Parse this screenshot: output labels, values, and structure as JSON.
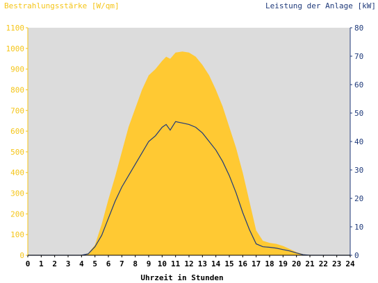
{
  "chart_data": {
    "type": "area",
    "title": "",
    "left_axis_label": "Bestrahlungsstärke [W/qm]",
    "right_axis_label": "Leistung der Anlage [kW]",
    "xlabel": "Uhrzeit in Stunden",
    "xlim": [
      0,
      24
    ],
    "ylim_left": [
      0,
      1100
    ],
    "ylim_right": [
      0,
      80
    ],
    "x_ticks": [
      0,
      1,
      2,
      3,
      4,
      5,
      6,
      7,
      8,
      9,
      10,
      11,
      12,
      13,
      14,
      15,
      16,
      17,
      18,
      19,
      20,
      21,
      22,
      23,
      24
    ],
    "y_ticks_left": [
      0,
      100,
      200,
      300,
      400,
      500,
      600,
      700,
      800,
      900,
      1000,
      1100
    ],
    "y_ticks_right": [
      0,
      10,
      20,
      30,
      40,
      50,
      60,
      70,
      80
    ],
    "colors": {
      "plot_background": "#dcdcdc",
      "irradiance_fill": "#ffc933",
      "power_line": "#1f3a7a",
      "left_axis": "#f5c518",
      "right_axis": "#1f3a7a"
    },
    "series": [
      {
        "name": "Bestrahlungsstärke [W/qm]",
        "axis": "left",
        "kind": "area",
        "x": [
          0,
          4,
          4.5,
          5,
          5.5,
          6,
          6.5,
          7,
          7.5,
          8,
          8.5,
          9,
          9.5,
          10,
          10.3,
          10.6,
          11,
          11.5,
          12,
          12.5,
          13,
          13.5,
          14,
          14.5,
          15,
          15.5,
          16,
          16.5,
          17,
          17.5,
          18,
          18.5,
          19,
          19.5,
          20,
          20.5,
          21,
          24
        ],
        "y": [
          0,
          0,
          10,
          50,
          150,
          270,
          380,
          500,
          620,
          710,
          800,
          870,
          900,
          940,
          960,
          950,
          980,
          985,
          980,
          960,
          920,
          870,
          800,
          720,
          620,
          520,
          400,
          260,
          120,
          70,
          60,
          55,
          45,
          30,
          15,
          5,
          0,
          0
        ]
      },
      {
        "name": "Leistung der Anlage [kW]",
        "axis": "right",
        "kind": "line",
        "x": [
          0,
          4,
          4.5,
          5,
          5.5,
          6,
          6.5,
          7,
          7.5,
          8,
          8.5,
          9,
          9.5,
          10,
          10.3,
          10.6,
          11,
          11.5,
          12,
          12.5,
          13,
          13.5,
          14,
          14.5,
          15,
          15.5,
          16,
          16.5,
          17,
          17.5,
          18,
          18.5,
          19,
          19.5,
          20,
          20.5,
          21,
          24
        ],
        "y": [
          0,
          0,
          0.5,
          3,
          7,
          13,
          19,
          24,
          28,
          32,
          36,
          40,
          42,
          45,
          46,
          44,
          47,
          46.5,
          46,
          45,
          43,
          40,
          37,
          33,
          28,
          22,
          15,
          9,
          4,
          3,
          2.8,
          2.5,
          2,
          1.5,
          0.8,
          0.2,
          0,
          0
        ]
      }
    ]
  }
}
